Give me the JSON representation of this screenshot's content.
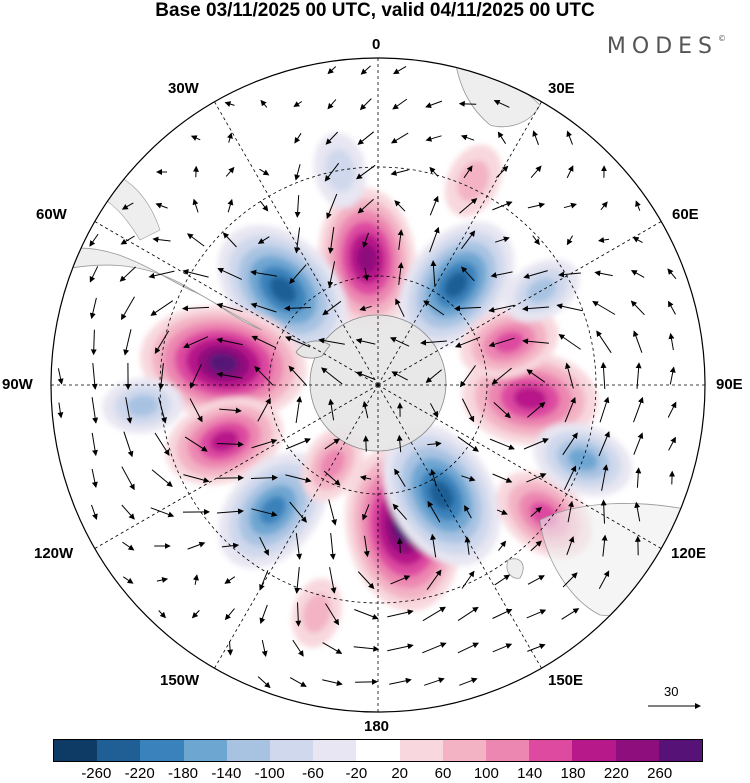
{
  "title": "Base 03/11/2025 00 UTC, valid 04/11/2025 00 UTC",
  "brand": "MODES",
  "brand_mark": "©",
  "longitude_labels": {
    "n0": "0",
    "n30e": "30E",
    "n60e": "60E",
    "n90e": "90E",
    "n120e": "120E",
    "n150e": "150E",
    "n180": "180",
    "n150w": "150W",
    "n120w": "120W",
    "n90w": "90W",
    "n60w": "60W",
    "n30w": "30W"
  },
  "colorbar": {
    "ticks": [
      "-260",
      "-220",
      "-180",
      "-140",
      "-100",
      "-60",
      "-20",
      "20",
      "60",
      "100",
      "140",
      "180",
      "220",
      "260"
    ],
    "colors": [
      "#0d3b66",
      "#1f5f96",
      "#3a82bb",
      "#6ea6d2",
      "#a8c3e2",
      "#cfd8ec",
      "#e7e6f2",
      "#ffffff",
      "#f8d8de",
      "#f3b3c5",
      "#ec87b1",
      "#dd4aa0",
      "#b8198a",
      "#8d0e7c",
      "#561277"
    ]
  },
  "reference_vector": {
    "label": "30"
  },
  "anomaly_centers": [
    {
      "sign": "positive",
      "lon": -5,
      "lat": -55,
      "strength": 180
    },
    {
      "sign": "negative",
      "lon": 38,
      "lat": -55,
      "strength": -180
    },
    {
      "sign": "negative",
      "lon": -45,
      "lat": -53,
      "strength": -200
    },
    {
      "sign": "positive",
      "lon": -82,
      "lat": -47,
      "strength": 230
    },
    {
      "sign": "positive",
      "lon": -110,
      "lat": -45,
      "strength": 140
    },
    {
      "sign": "negative",
      "lon": -140,
      "lat": -45,
      "strength": -160
    },
    {
      "sign": "positive",
      "lon": -150,
      "lat": -65,
      "strength": 60
    },
    {
      "sign": "positive",
      "lon": 170,
      "lat": -50,
      "strength": 230
    },
    {
      "sign": "negative",
      "lon": 150,
      "lat": -55,
      "strength": -200
    },
    {
      "sign": "positive",
      "lon": 95,
      "lat": -48,
      "strength": 170
    },
    {
      "sign": "positive",
      "lon": 72,
      "lat": -52,
      "strength": 100
    },
    {
      "sign": "positive",
      "lon": 128,
      "lat": -32,
      "strength": 110
    },
    {
      "sign": "negative",
      "lon": 110,
      "lat": -30,
      "strength": -100
    },
    {
      "sign": "negative",
      "lon": 60,
      "lat": -38,
      "strength": -60
    },
    {
      "sign": "negative",
      "lon": -95,
      "lat": -25,
      "strength": -60
    },
    {
      "sign": "positive",
      "lon": 25,
      "lat": -28,
      "strength": 50
    },
    {
      "sign": "negative",
      "lon": -10,
      "lat": -30,
      "strength": -50
    },
    {
      "sign": "positive",
      "lon": -165,
      "lat": -25,
      "strength": 40
    }
  ]
}
